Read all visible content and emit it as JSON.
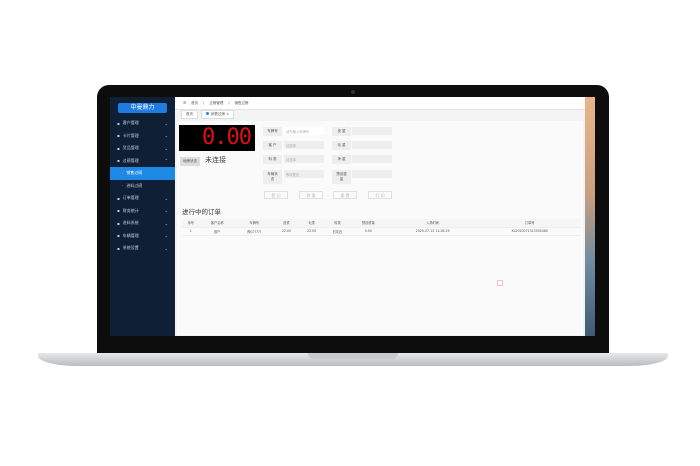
{
  "sidebar": {
    "logo": "中曼鼎力",
    "items": [
      {
        "label": "客户管理",
        "icon": "user-icon"
      },
      {
        "label": "卡片管理",
        "icon": "card-icon"
      },
      {
        "label": "货品管理",
        "icon": "box-icon"
      },
      {
        "label": "过磅管理",
        "icon": "scale-icon",
        "expanded": true
      },
      {
        "label": "销售过磅",
        "sub": true,
        "active": true
      },
      {
        "label": "进料过磅",
        "sub": true
      },
      {
        "label": "订单管理",
        "icon": "order-icon"
      },
      {
        "label": "财务统计",
        "icon": "yen-icon"
      },
      {
        "label": "进料系统",
        "icon": "truck-icon"
      },
      {
        "label": "车辆管理",
        "icon": "car-icon"
      },
      {
        "label": "系统设置",
        "icon": "gear-icon"
      }
    ]
  },
  "header": {
    "breadcrumb": [
      "首页",
      "过磅管理",
      "销售过磅"
    ]
  },
  "tabs": [
    "首页",
    "销售过磅"
  ],
  "scale": {
    "reading": "0.00",
    "status_label": "地磅状态",
    "status": "未连接"
  },
  "form": {
    "plate": {
      "label": "车牌号",
      "placeholder": "请先输入车牌号"
    },
    "customer": {
      "label": "客 户",
      "placeholder": "请选择"
    },
    "material": {
      "label": "料 类",
      "placeholder": "请选择"
    },
    "vehicle_status": {
      "label": "车辆状态",
      "placeholder": "等待登记"
    },
    "tare": {
      "label": "皮 重"
    },
    "gross": {
      "label": "毛 重"
    },
    "net": {
      "label": "净 重"
    },
    "preset": {
      "label": "预设重量"
    }
  },
  "buttons": [
    "登 记",
    "称 重",
    "重 置",
    "打 印"
  ],
  "orders": {
    "title": "进行中的订单",
    "columns": [
      "序号",
      "客户名称",
      "车牌号",
      "皮重",
      "毛重",
      "料类",
      "预设重量",
      "入场时间",
      "订单号"
    ],
    "rows": [
      [
        "1",
        "散户",
        "豫G?????",
        "22.00",
        "22.00",
        "石灰石",
        "0.00",
        "2020-07-13 11:28:19",
        "XL2020071313500480"
      ]
    ]
  }
}
